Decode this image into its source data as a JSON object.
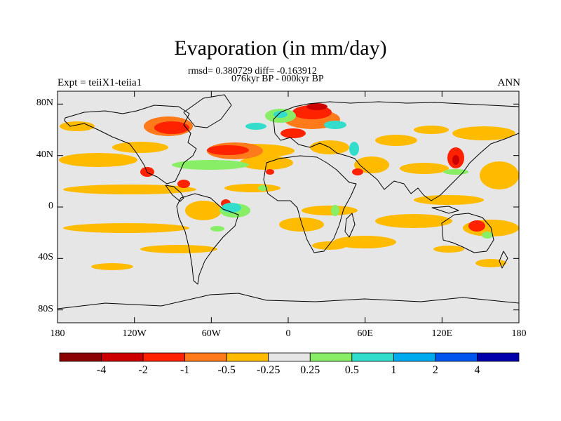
{
  "title": "Evaporation (in mm/day)",
  "stats": "rmsd= 0.380729 diff= -0.163912",
  "period": "076kyr BP - 000kyr BP",
  "experiment": "Expt = teiiX1-teiia1",
  "season": "ANN",
  "y_ticks": [
    "80N",
    "40N",
    "0",
    "40S",
    "80S"
  ],
  "x_ticks": [
    "180",
    "120W",
    "60W",
    "0",
    "60E",
    "120E",
    "180"
  ],
  "colorbar": {
    "labels": [
      "-4",
      "-2",
      "-1",
      "-0.5",
      "-0.25",
      "0.25",
      "0.5",
      "1",
      "2",
      "4"
    ],
    "colors": [
      "#8b0000",
      "#cc0000",
      "#ff2200",
      "#ff7a1a",
      "#ffbb00",
      "#e6e6e6",
      "#88ee66",
      "#33ddcc",
      "#00aaee",
      "#0055ee",
      "#0000aa"
    ]
  },
  "colors": {
    "background": "#e6e6e6",
    "coast": "#000000"
  }
}
